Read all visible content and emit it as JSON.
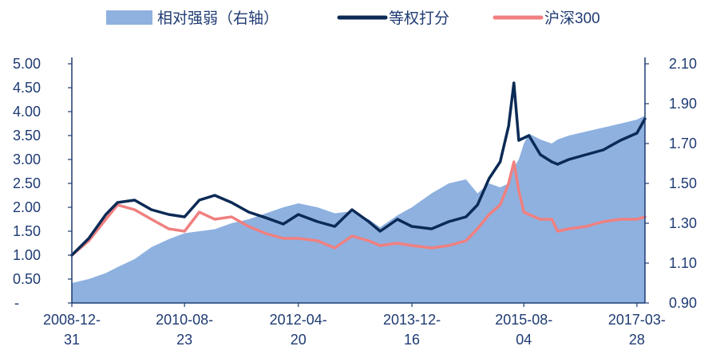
{
  "chart_data": {
    "type": "line",
    "legend": [
      {
        "name": "相对强弱（右轴）",
        "type": "area",
        "color": "#8eb1e0"
      },
      {
        "name": "等权打分",
        "type": "line",
        "color": "#0b2a55"
      },
      {
        "name": "沪深300",
        "type": "line",
        "color": "#f08080"
      }
    ],
    "legend_position": "top",
    "x_ticks": [
      {
        "label1": "2008-12-",
        "label2": "31",
        "date": "2008-12-31"
      },
      {
        "label1": "2010-08-",
        "label2": "23",
        "date": "2010-08-23"
      },
      {
        "label1": "2012-04-",
        "label2": "20",
        "date": "2012-04-20"
      },
      {
        "label1": "2013-12-",
        "label2": "16",
        "date": "2013-12-16"
      },
      {
        "label1": "2015-08-",
        "label2": "04",
        "date": "2015-08-04"
      },
      {
        "label1": "2017-03-",
        "label2": "28",
        "date": "2017-03-28"
      }
    ],
    "y_left": {
      "ticks": [
        "5.00",
        "4.50",
        "4.00",
        "3.50",
        "3.00",
        "2.50",
        "2.00",
        "1.50",
        "1.00",
        "0.50",
        "-"
      ],
      "min": 0,
      "max": 5
    },
    "y_right": {
      "ticks": [
        "2.10",
        "1.90",
        "1.70",
        "1.50",
        "1.30",
        "1.10",
        "0.90"
      ],
      "min": 0.9,
      "max": 2.1
    },
    "grid": false,
    "x": [
      "2008-12-31",
      "2009-03-31",
      "2009-06-30",
      "2009-08-31",
      "2009-11-30",
      "2010-02-28",
      "2010-05-31",
      "2010-08-23",
      "2010-11-10",
      "2011-01-31",
      "2011-04-30",
      "2011-07-31",
      "2011-10-31",
      "2012-01-31",
      "2012-04-20",
      "2012-07-31",
      "2012-10-31",
      "2013-01-31",
      "2013-04-30",
      "2013-06-30",
      "2013-09-30",
      "2013-12-16",
      "2014-03-31",
      "2014-06-30",
      "2014-09-30",
      "2014-11-30",
      "2015-01-31",
      "2015-03-31",
      "2015-05-15",
      "2015-06-12",
      "2015-07-08",
      "2015-08-04",
      "2015-08-31",
      "2015-10-31",
      "2015-12-31",
      "2016-01-31",
      "2016-03-31",
      "2016-06-30",
      "2016-09-30",
      "2016-12-31",
      "2017-03-28",
      "2017-05-10"
    ],
    "series": [
      {
        "name": "等权打分",
        "axis": "left",
        "values": [
          1.0,
          1.35,
          1.85,
          2.1,
          2.15,
          1.95,
          1.85,
          1.8,
          2.15,
          2.25,
          2.1,
          1.9,
          1.78,
          1.65,
          1.85,
          1.7,
          1.6,
          1.95,
          1.7,
          1.5,
          1.75,
          1.6,
          1.55,
          1.7,
          1.8,
          2.05,
          2.6,
          2.95,
          3.7,
          4.6,
          3.4,
          3.45,
          3.5,
          3.1,
          2.95,
          2.9,
          3.0,
          3.1,
          3.2,
          3.4,
          3.55,
          3.85
        ]
      },
      {
        "name": "沪深300",
        "axis": "left",
        "values": [
          1.0,
          1.3,
          1.75,
          2.05,
          1.95,
          1.75,
          1.55,
          1.5,
          1.9,
          1.75,
          1.8,
          1.6,
          1.45,
          1.35,
          1.35,
          1.3,
          1.15,
          1.4,
          1.3,
          1.2,
          1.25,
          1.2,
          1.15,
          1.2,
          1.3,
          1.55,
          1.85,
          2.05,
          2.5,
          2.95,
          2.35,
          1.9,
          1.85,
          1.75,
          1.75,
          1.5,
          1.55,
          1.6,
          1.7,
          1.75,
          1.75,
          1.8
        ]
      },
      {
        "name": "相对强弱（右轴）",
        "axis": "right",
        "values": [
          1.0,
          1.02,
          1.05,
          1.08,
          1.12,
          1.18,
          1.22,
          1.25,
          1.26,
          1.27,
          1.3,
          1.32,
          1.35,
          1.38,
          1.4,
          1.38,
          1.35,
          1.36,
          1.32,
          1.28,
          1.34,
          1.38,
          1.45,
          1.5,
          1.52,
          1.45,
          1.5,
          1.48,
          1.5,
          1.58,
          1.62,
          1.7,
          1.75,
          1.72,
          1.7,
          1.72,
          1.74,
          1.76,
          1.78,
          1.8,
          1.82,
          1.84
        ]
      }
    ]
  }
}
